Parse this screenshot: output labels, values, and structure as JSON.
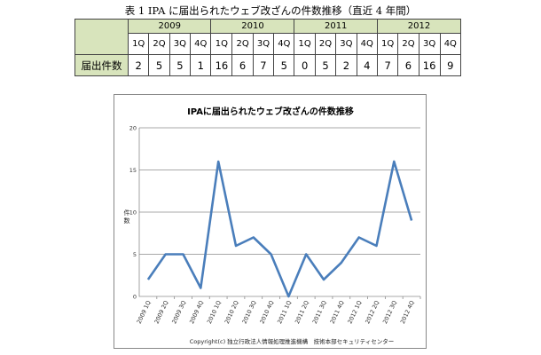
{
  "table": {
    "caption": "表 1 IPA に届出られたウェブ改ざんの件数推移（直近 4 年間）",
    "years": [
      "2009",
      "2010",
      "2011",
      "2012"
    ],
    "quarters": [
      "1Q",
      "2Q",
      "3Q",
      "4Q",
      "1Q",
      "2Q",
      "3Q",
      "4Q",
      "1Q",
      "2Q",
      "3Q",
      "4Q",
      "1Q",
      "2Q",
      "3Q",
      "4Q"
    ],
    "row_label": "届出件数",
    "values": [
      "2",
      "5",
      "5",
      "1",
      "16",
      "6",
      "7",
      "5",
      "0",
      "5",
      "2",
      "4",
      "7",
      "6",
      "16",
      "9"
    ],
    "header_color": "#d8e4bc"
  },
  "chart_data": {
    "type": "line",
    "title": "IPAに届出られたウェブ改ざんの件数推移",
    "ylabel": "件数",
    "xlabel": "",
    "categories": [
      "2009 1Q",
      "2009 2Q",
      "2009 3Q",
      "2009 4Q",
      "2010 1Q",
      "2010 2Q",
      "2010 3Q",
      "2010 4Q",
      "2011 1Q",
      "2011 2Q",
      "2011 3Q",
      "2011 4Q",
      "2012 1Q",
      "2012 2Q",
      "2012 3Q",
      "2012 4Q"
    ],
    "series": [
      {
        "values": [
          2,
          5,
          5,
          1,
          16,
          6,
          7,
          5,
          0,
          5,
          2,
          4,
          7,
          6,
          16,
          9
        ],
        "color": "#4a7ebb"
      }
    ],
    "ylim": [
      0,
      20
    ],
    "yticks": [
      "0",
      "5",
      "10",
      "15",
      "20"
    ],
    "grid": true,
    "legend": "none",
    "copyright": "Copyright(c) 独立行政法人情報処理推進機構　技術本部セキュリティセンター"
  }
}
